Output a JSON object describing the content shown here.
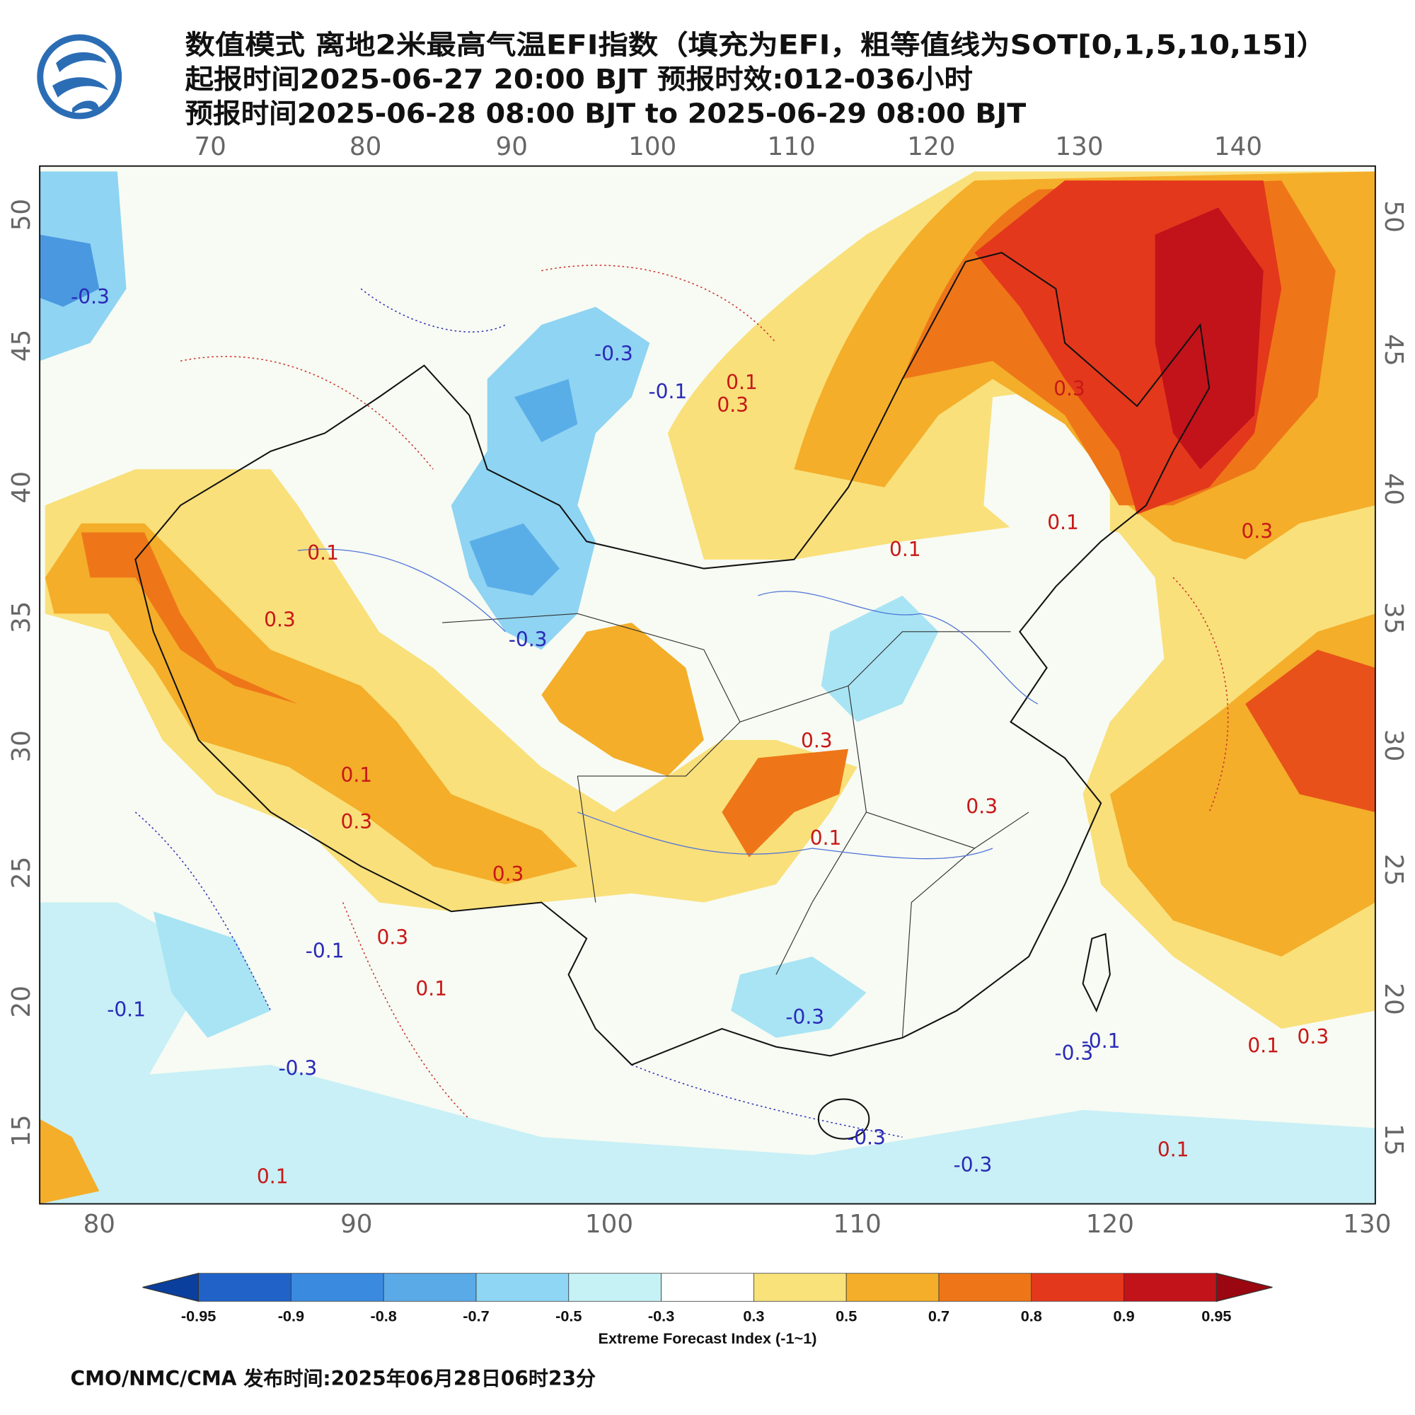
{
  "header": {
    "title": "数值模式 离地2米最高气温EFI指数（填充为EFI，粗等值线为SOT[0,1,5,10,15]）",
    "issue_time": "起报时间2025-06-27 20:00 BJT 预报时效:012-036小时",
    "valid_time": "预报时间2025-06-28 08:00 BJT to 2025-06-29 08:00 BJT"
  },
  "map": {
    "top_lon_labels": [
      70,
      80,
      90,
      100,
      110,
      120,
      130,
      140
    ],
    "bottom_lon_labels": [
      80,
      90,
      100,
      110,
      120,
      130
    ],
    "left_lat_labels": [
      50,
      45,
      40,
      35,
      30,
      25,
      20,
      15
    ],
    "right_lat_labels": [
      50,
      45,
      40,
      35,
      30,
      25,
      20,
      15
    ],
    "contour_labels": [
      "-0.3",
      "-0.1",
      "0.1",
      "0.3",
      "0.3",
      "0.1",
      "0.3",
      "0.3",
      "0.1",
      "0.1",
      "-0.3",
      "0.3",
      "0.1",
      "0.3",
      "0.3",
      "0.3",
      "-0.1",
      "0.1",
      "-0.1",
      "-0.3",
      "-0.3",
      "-0.3",
      "-0.1",
      "0.1",
      "0.3",
      "0.1",
      "-0.3",
      "-0.3",
      "0.1",
      "-0.3",
      "0.3",
      "0.1"
    ]
  },
  "legend": {
    "ticks": [
      -0.95,
      -0.9,
      -0.8,
      -0.7,
      -0.5,
      -0.3,
      0.3,
      0.5,
      0.7,
      0.8,
      0.9,
      0.95
    ],
    "colors": [
      "#0a3f9e",
      "#2062c8",
      "#3a8ae0",
      "#5aaae8",
      "#8ed6f4",
      "#c6f2f6",
      "#ffffff",
      "#f9e27a",
      "#f4ae2a",
      "#ee7618",
      "#e4381c",
      "#c2121a",
      "#9a0710"
    ],
    "title": "Extreme Forecast Index (-1~1)"
  },
  "footer": "CMO/NMC/CMA 发布时间:2025年06月28日06时23分"
}
